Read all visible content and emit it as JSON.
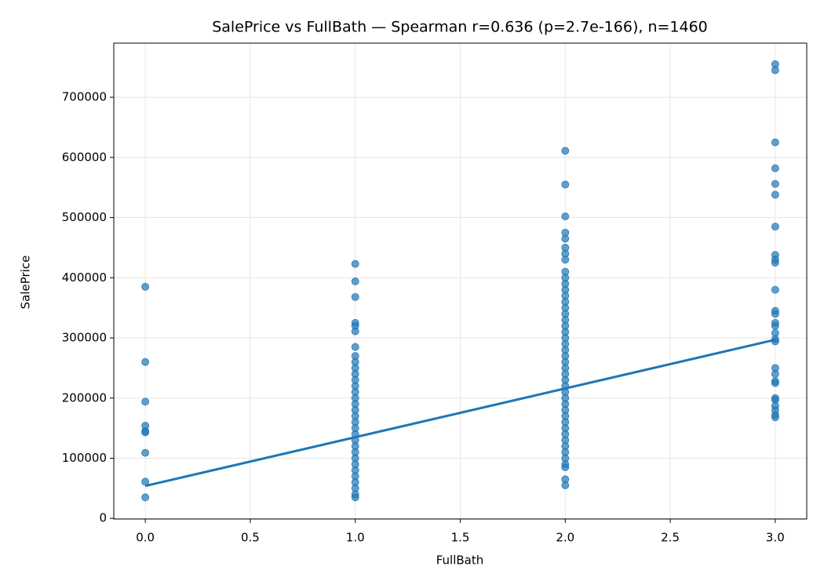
{
  "chart_data": {
    "type": "scatter",
    "title": "SalePrice vs FullBath — Spearman r=0.636 (p=2.7e-166), n=1460",
    "x_label": "FullBath",
    "y_label": "SalePrice",
    "xlim": [
      -0.15,
      3.15
    ],
    "ylim": [
      -1000,
      790000
    ],
    "xticks": [
      {
        "value": 0,
        "label": "0.0"
      },
      {
        "value": 0.5,
        "label": "0.5"
      },
      {
        "value": 1,
        "label": "1.0"
      },
      {
        "value": 1.5,
        "label": "1.5"
      },
      {
        "value": 2,
        "label": "2.0"
      },
      {
        "value": 2.5,
        "label": "2.5"
      },
      {
        "value": 3,
        "label": "3.0"
      }
    ],
    "yticks": [
      0,
      100000,
      200000,
      300000,
      400000,
      500000,
      600000,
      700000
    ],
    "grid": true,
    "color": "#1f77b4",
    "x": [
      0,
      0,
      0,
      0,
      0,
      0,
      0,
      0,
      0,
      1,
      1,
      1,
      1,
      1,
      1,
      1,
      1,
      1,
      1,
      1,
      1,
      1,
      1,
      1,
      1,
      1,
      1,
      1,
      1,
      1,
      1,
      1,
      1,
      1,
      1,
      1,
      1,
      1,
      1,
      1,
      1,
      2,
      2,
      2,
      2,
      2,
      2,
      2,
      2,
      2,
      2,
      2,
      2,
      2,
      2,
      2,
      2,
      2,
      2,
      2,
      2,
      2,
      2,
      2,
      2,
      2,
      2,
      2,
      2,
      2,
      2,
      2,
      2,
      2,
      2,
      2,
      2,
      2,
      2,
      2,
      2,
      2,
      2,
      2,
      2,
      3,
      3,
      3,
      3,
      3,
      3,
      3,
      3,
      3,
      3,
      3,
      3,
      3,
      3,
      3,
      3,
      3,
      3,
      3,
      3,
      3,
      3,
      3,
      3,
      3,
      3,
      3,
      3
    ],
    "y": [
      385000,
      260000,
      194000,
      154000,
      145000,
      143000,
      109000,
      61000,
      35000,
      423000,
      394000,
      368000,
      325000,
      320000,
      311000,
      285000,
      270000,
      260000,
      250000,
      240000,
      230000,
      220000,
      210000,
      200000,
      190000,
      180000,
      170000,
      160000,
      150000,
      140000,
      130000,
      120000,
      110000,
      100000,
      90000,
      80000,
      70000,
      60000,
      50000,
      40000,
      35000,
      611000,
      555000,
      502000,
      475000,
      465000,
      450000,
      440000,
      430000,
      410000,
      400000,
      390000,
      380000,
      370000,
      360000,
      350000,
      340000,
      330000,
      320000,
      310000,
      300000,
      290000,
      280000,
      270000,
      260000,
      250000,
      240000,
      230000,
      220000,
      210000,
      200000,
      190000,
      180000,
      170000,
      160000,
      150000,
      140000,
      130000,
      120000,
      110000,
      100000,
      90000,
      85000,
      65000,
      55000,
      755000,
      745000,
      625000,
      582000,
      556000,
      538000,
      485000,
      438000,
      430000,
      425000,
      380000,
      345000,
      340000,
      325000,
      320000,
      308000,
      298000,
      294000,
      250000,
      240000,
      228000,
      225000,
      200000,
      197000,
      187000,
      180000,
      172000,
      168000
    ],
    "fit": {
      "x": [
        0,
        3
      ],
      "y": [
        54000,
        297000
      ]
    }
  }
}
